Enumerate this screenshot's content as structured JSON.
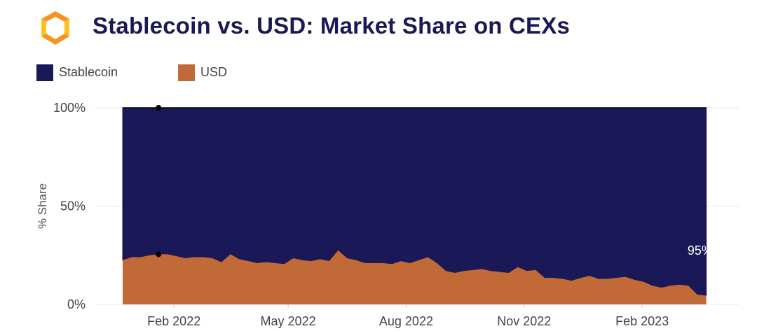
{
  "header": {
    "title": "Stablecoin vs. USD: Market Share on CEXs",
    "logo_icon": "hexagon-logo-icon"
  },
  "colors": {
    "stablecoin": "#1a1856",
    "usd": "#c16a38",
    "title": "#1a1856",
    "grid": "#e9e9e9",
    "logo_orange": "#f7931e",
    "logo_yellow": "#fcc221"
  },
  "chart_data": {
    "type": "area",
    "stacked": true,
    "title": "Stablecoin vs. USD: Market Share on CEXs",
    "xlabel": "",
    "ylabel": "% Share",
    "ylim": [
      0,
      100
    ],
    "xlim": [
      "2021-12-23",
      "2023-03-27"
    ],
    "grid": true,
    "legend": "top-left",
    "y_ticks": [
      {
        "value": 0,
        "label": "0%"
      },
      {
        "value": 50,
        "label": "50%"
      },
      {
        "value": 100,
        "label": "100%"
      }
    ],
    "x_ticks": [
      {
        "date": "2022-02-01",
        "label": "Feb 2022"
      },
      {
        "date": "2022-05-01",
        "label": "May 2022"
      },
      {
        "date": "2022-08-01",
        "label": "Aug 2022"
      },
      {
        "date": "2022-11-01",
        "label": "Nov 2022"
      },
      {
        "date": "2023-02-01",
        "label": "Feb 2023"
      }
    ],
    "x": [
      "2021-12-23",
      "2021-12-30",
      "2022-01-06",
      "2022-01-13",
      "2022-01-20",
      "2022-01-27",
      "2022-02-03",
      "2022-02-10",
      "2022-02-17",
      "2022-02-24",
      "2022-03-03",
      "2022-03-10",
      "2022-03-17",
      "2022-03-24",
      "2022-03-31",
      "2022-04-07",
      "2022-04-14",
      "2022-04-21",
      "2022-04-28",
      "2022-05-05",
      "2022-05-12",
      "2022-05-19",
      "2022-05-26",
      "2022-06-02",
      "2022-06-09",
      "2022-06-16",
      "2022-06-23",
      "2022-06-30",
      "2022-07-07",
      "2022-07-14",
      "2022-07-21",
      "2022-07-28",
      "2022-08-04",
      "2022-08-11",
      "2022-08-18",
      "2022-08-25",
      "2022-09-01",
      "2022-09-08",
      "2022-09-15",
      "2022-09-22",
      "2022-09-29",
      "2022-10-06",
      "2022-10-13",
      "2022-10-20",
      "2022-10-27",
      "2022-11-03",
      "2022-11-10",
      "2022-11-17",
      "2022-11-24",
      "2022-12-01",
      "2022-12-08",
      "2022-12-15",
      "2022-12-22",
      "2022-12-29",
      "2023-01-05",
      "2023-01-12",
      "2023-01-19",
      "2023-01-26",
      "2023-02-02",
      "2023-02-09",
      "2023-02-16",
      "2023-02-23",
      "2023-03-02",
      "2023-03-09",
      "2023-03-16",
      "2023-03-23"
    ],
    "series": [
      {
        "name": "Stablecoin",
        "values": [
          77.5,
          76,
          76,
          75,
          74.5,
          74.5,
          75.5,
          76.5,
          76,
          76,
          76.5,
          78.5,
          74.5,
          77,
          78,
          79,
          78.5,
          79,
          79.5,
          76.5,
          77.5,
          78,
          77,
          78,
          72.5,
          76.5,
          77.5,
          79,
          79,
          79,
          79.5,
          78,
          79,
          77.5,
          76,
          79,
          83,
          84,
          83,
          82.5,
          82,
          83,
          83.5,
          84,
          81,
          83,
          82.5,
          86.5,
          86.5,
          87,
          88,
          86.5,
          85.5,
          87,
          87,
          86.5,
          86,
          87.5,
          88.5,
          90.5,
          91.5,
          90.5,
          90,
          90.5,
          95,
          95.5
        ]
      },
      {
        "name": "USD",
        "values": [
          22.5,
          24,
          24,
          25,
          25.5,
          25.5,
          24.5,
          23.5,
          24,
          24,
          23.5,
          21.5,
          25.5,
          23,
          22,
          21,
          21.5,
          21,
          20.5,
          23.5,
          22.5,
          22,
          23,
          22,
          27.5,
          23.5,
          22.5,
          21,
          21,
          21,
          20.5,
          22,
          21,
          22.5,
          24,
          21,
          17,
          16,
          17,
          17.5,
          18,
          17,
          16.5,
          16,
          19,
          17,
          17.5,
          13.5,
          13.5,
          13,
          12,
          13.5,
          14.5,
          13,
          13,
          13.5,
          14,
          12.5,
          11.5,
          9.5,
          8.5,
          9.5,
          10,
          9.5,
          5,
          4.5
        ]
      }
    ],
    "markers": [
      {
        "date": "2022-01-20",
        "value": 100
      },
      {
        "date": "2022-01-20",
        "value": 25.5
      }
    ],
    "annotations": [
      {
        "text": "95%",
        "series": "Stablecoin",
        "date": "2023-03-16"
      }
    ]
  }
}
